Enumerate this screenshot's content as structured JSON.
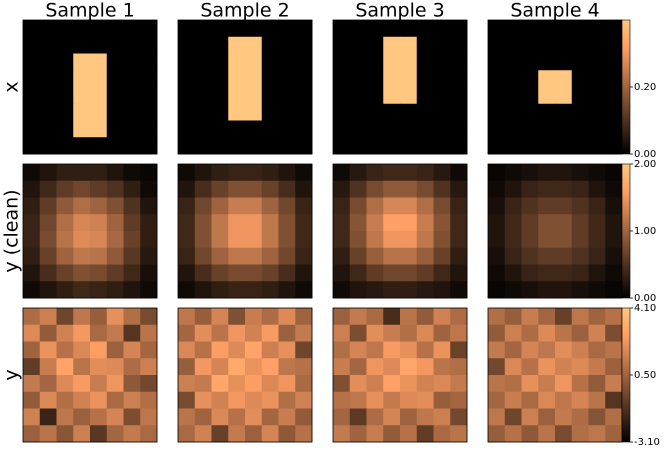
{
  "chart_data": {
    "type": "heatmap",
    "colormap": "copper",
    "columns": [
      "Sample 1",
      "Sample 2",
      "Sample 3",
      "Sample 4"
    ],
    "rows": [
      {
        "label": "x",
        "zlim": [
          0,
          0.4
        ],
        "zticks": [
          {
            "value": 0,
            "label": "0.00"
          },
          {
            "value": 0.2,
            "label": "0.20"
          }
        ],
        "panels": [
          [
            [
              0,
              0,
              0,
              0,
              0,
              0,
              0,
              0
            ],
            [
              0,
              0,
              0,
              0,
              0,
              0,
              0,
              0
            ],
            [
              0,
              0,
              0,
              0.4,
              0.4,
              0,
              0,
              0
            ],
            [
              0,
              0,
              0,
              0.4,
              0.4,
              0,
              0,
              0
            ],
            [
              0,
              0,
              0,
              0.4,
              0.4,
              0,
              0,
              0
            ],
            [
              0,
              0,
              0,
              0.4,
              0.4,
              0,
              0,
              0
            ],
            [
              0,
              0,
              0,
              0.4,
              0.4,
              0,
              0,
              0
            ],
            [
              0,
              0,
              0,
              0,
              0,
              0,
              0,
              0
            ]
          ],
          [
            [
              0,
              0,
              0,
              0,
              0,
              0,
              0,
              0
            ],
            [
              0,
              0,
              0,
              0.4,
              0.4,
              0,
              0,
              0
            ],
            [
              0,
              0,
              0,
              0.4,
              0.4,
              0,
              0,
              0
            ],
            [
              0,
              0,
              0,
              0.4,
              0.4,
              0,
              0,
              0
            ],
            [
              0,
              0,
              0,
              0.4,
              0.4,
              0,
              0,
              0
            ],
            [
              0,
              0,
              0,
              0.4,
              0.4,
              0,
              0,
              0
            ],
            [
              0,
              0,
              0,
              0,
              0,
              0,
              0,
              0
            ],
            [
              0,
              0,
              0,
              0,
              0,
              0,
              0,
              0
            ]
          ],
          [
            [
              0,
              0,
              0,
              0,
              0,
              0,
              0,
              0
            ],
            [
              0,
              0,
              0,
              0.4,
              0.4,
              0,
              0,
              0
            ],
            [
              0,
              0,
              0,
              0.4,
              0.4,
              0,
              0,
              0
            ],
            [
              0,
              0,
              0,
              0.4,
              0.4,
              0,
              0,
              0
            ],
            [
              0,
              0,
              0,
              0.4,
              0.4,
              0,
              0,
              0
            ],
            [
              0,
              0,
              0,
              0,
              0,
              0,
              0,
              0
            ],
            [
              0,
              0,
              0,
              0,
              0,
              0,
              0,
              0
            ],
            [
              0,
              0,
              0,
              0,
              0,
              0,
              0,
              0
            ]
          ],
          [
            [
              0,
              0,
              0,
              0,
              0,
              0,
              0,
              0
            ],
            [
              0,
              0,
              0,
              0,
              0,
              0,
              0,
              0
            ],
            [
              0,
              0,
              0,
              0,
              0,
              0,
              0,
              0
            ],
            [
              0,
              0,
              0,
              0.4,
              0.4,
              0,
              0,
              0
            ],
            [
              0,
              0,
              0,
              0.4,
              0.4,
              0,
              0,
              0
            ],
            [
              0,
              0,
              0,
              0,
              0,
              0,
              0,
              0
            ],
            [
              0,
              0,
              0,
              0,
              0,
              0,
              0,
              0
            ],
            [
              0,
              0,
              0,
              0,
              0,
              0,
              0,
              0
            ]
          ]
        ]
      },
      {
        "label": "y (clean)",
        "zlim": [
          0,
          2
        ],
        "zticks": [
          {
            "value": 0,
            "label": "0.00"
          },
          {
            "value": 1,
            "label": "1.00"
          },
          {
            "value": 2,
            "label": "2.00"
          }
        ],
        "panels": [
          [
            [
              0.1,
              0.2,
              0.3,
              0.3,
              0.3,
              0.2,
              0.1,
              0.05
            ],
            [
              0.2,
              0.4,
              0.6,
              0.7,
              0.6,
              0.5,
              0.3,
              0.1
            ],
            [
              0.3,
              0.6,
              0.9,
              1.1,
              1.0,
              0.8,
              0.5,
              0.2
            ],
            [
              0.35,
              0.7,
              1.1,
              1.35,
              1.3,
              1.0,
              0.6,
              0.3
            ],
            [
              0.35,
              0.75,
              1.15,
              1.4,
              1.35,
              1.05,
              0.65,
              0.3
            ],
            [
              0.3,
              0.65,
              1.0,
              1.2,
              1.15,
              0.9,
              0.55,
              0.25
            ],
            [
              0.2,
              0.45,
              0.65,
              0.8,
              0.75,
              0.6,
              0.4,
              0.15
            ],
            [
              0.1,
              0.2,
              0.3,
              0.4,
              0.35,
              0.3,
              0.2,
              0.1
            ]
          ],
          [
            [
              0.1,
              0.2,
              0.3,
              0.35,
              0.35,
              0.3,
              0.2,
              0.1
            ],
            [
              0.2,
              0.45,
              0.65,
              0.8,
              0.8,
              0.65,
              0.45,
              0.2
            ],
            [
              0.35,
              0.7,
              1.0,
              1.25,
              1.25,
              1.0,
              0.7,
              0.35
            ],
            [
              0.4,
              0.8,
              1.2,
              1.5,
              1.5,
              1.2,
              0.8,
              0.4
            ],
            [
              0.4,
              0.8,
              1.2,
              1.5,
              1.5,
              1.2,
              0.8,
              0.4
            ],
            [
              0.35,
              0.7,
              1.0,
              1.2,
              1.2,
              1.0,
              0.7,
              0.35
            ],
            [
              0.2,
              0.45,
              0.65,
              0.75,
              0.75,
              0.65,
              0.45,
              0.2
            ],
            [
              0.1,
              0.2,
              0.3,
              0.35,
              0.35,
              0.3,
              0.2,
              0.1
            ]
          ],
          [
            [
              0.1,
              0.25,
              0.35,
              0.4,
              0.4,
              0.35,
              0.25,
              0.1
            ],
            [
              0.25,
              0.5,
              0.75,
              0.9,
              0.9,
              0.75,
              0.5,
              0.25
            ],
            [
              0.35,
              0.75,
              1.1,
              1.35,
              1.35,
              1.1,
              0.75,
              0.35
            ],
            [
              0.4,
              0.85,
              1.25,
              1.6,
              1.6,
              1.25,
              0.85,
              0.4
            ],
            [
              0.4,
              0.8,
              1.2,
              1.5,
              1.5,
              1.2,
              0.8,
              0.4
            ],
            [
              0.3,
              0.65,
              0.95,
              1.15,
              1.15,
              0.95,
              0.65,
              0.3
            ],
            [
              0.2,
              0.4,
              0.6,
              0.7,
              0.7,
              0.6,
              0.4,
              0.2
            ],
            [
              0.1,
              0.2,
              0.25,
              0.3,
              0.3,
              0.25,
              0.2,
              0.1
            ]
          ],
          [
            [
              0.05,
              0.1,
              0.15,
              0.2,
              0.2,
              0.15,
              0.1,
              0.05
            ],
            [
              0.1,
              0.2,
              0.35,
              0.4,
              0.4,
              0.35,
              0.2,
              0.1
            ],
            [
              0.15,
              0.35,
              0.5,
              0.6,
              0.6,
              0.5,
              0.35,
              0.15
            ],
            [
              0.2,
              0.4,
              0.6,
              0.8,
              0.8,
              0.6,
              0.4,
              0.2
            ],
            [
              0.2,
              0.4,
              0.6,
              0.8,
              0.8,
              0.6,
              0.4,
              0.2
            ],
            [
              0.15,
              0.35,
              0.5,
              0.6,
              0.6,
              0.5,
              0.35,
              0.15
            ],
            [
              0.1,
              0.2,
              0.35,
              0.4,
              0.4,
              0.35,
              0.2,
              0.1
            ],
            [
              0.05,
              0.1,
              0.15,
              0.2,
              0.2,
              0.15,
              0.1,
              0.05
            ]
          ]
        ]
      },
      {
        "label": "y",
        "zlim": [
          -3.1,
          4.1
        ],
        "zticks": [
          {
            "value": -3.1,
            "label": "-3.10"
          },
          {
            "value": 0.5,
            "label": "0.50"
          },
          {
            "value": 4.1,
            "label": "4.10"
          }
        ],
        "panels": [
          [
            [
              0.8,
              1.5,
              -0.6,
              1.2,
              0.3,
              2.1,
              0.9,
              -0.4
            ],
            [
              1.9,
              0.2,
              1.6,
              2.4,
              0.7,
              1.3,
              -1.2,
              1.1
            ],
            [
              0.5,
              2.2,
              1.0,
              1.8,
              2.6,
              0.4,
              1.7,
              0.6
            ],
            [
              -0.9,
              1.4,
              2.8,
              1.1,
              2.0,
              1.9,
              0.8,
              1.5
            ],
            [
              1.3,
              0.6,
              1.9,
              2.5,
              1.4,
              2.3,
              0.1,
              -0.5
            ],
            [
              0.2,
              1.8,
              0.9,
              1.6,
              2.2,
              0.7,
              1.5,
              0.9
            ],
            [
              1.6,
              -1.8,
              1.2,
              0.4,
              1.0,
              1.7,
              -0.3,
              1.2
            ],
            [
              0.4,
              1.1,
              0.0,
              1.5,
              -1.1,
              0.6,
              1.3,
              0.7
            ]
          ],
          [
            [
              1.2,
              0.3,
              1.7,
              -0.2,
              1.4,
              0.8,
              1.9,
              0.5
            ],
            [
              0.6,
              2.0,
              1.1,
              2.3,
              1.6,
              2.5,
              0.4,
              1.3
            ],
            [
              1.8,
              1.0,
              2.6,
              1.9,
              2.8,
              1.5,
              2.1,
              -0.6
            ],
            [
              0.3,
              2.4,
              1.7,
              3.0,
              2.2,
              2.7,
              1.2,
              1.0
            ],
            [
              1.5,
              1.3,
              2.9,
              2.1,
              2.6,
              1.8,
              2.3,
              0.7
            ],
            [
              -0.4,
              2.1,
              1.6,
              2.4,
              1.9,
              2.2,
              0.9,
              1.6
            ],
            [
              1.1,
              0.5,
              1.8,
              1.0,
              2.0,
              0.6,
              1.4,
              0.2
            ],
            [
              0.7,
              1.6,
              -0.8,
              1.3,
              0.4,
              1.7,
              0.1,
              1.0
            ]
          ],
          [
            [
              0.4,
              1.3,
              0.7,
              -1.5,
              1.1,
              0.2,
              1.6,
              0.8
            ],
            [
              1.5,
              -0.3,
              2.0,
              1.4,
              0.9,
              1.8,
              0.5,
              1.2
            ],
            [
              0.9,
              1.7,
              1.2,
              2.5,
              2.1,
              1.0,
              2.2,
              -0.7
            ],
            [
              1.4,
              0.6,
              2.3,
              1.9,
              2.9,
              2.4,
              1.1,
              0.9
            ],
            [
              -0.2,
              2.0,
              1.5,
              2.7,
              2.2,
              1.6,
              1.8,
              1.3
            ],
            [
              1.0,
              1.2,
              2.1,
              1.3,
              1.9,
              2.0,
              0.3,
              0.6
            ],
            [
              0.6,
              -1.0,
              0.8,
              1.7,
              0.5,
              1.2,
              1.5,
              -0.5
            ],
            [
              1.3,
              0.5,
              1.4,
              0.2,
              1.0,
              -0.9,
              0.7,
              1.1
            ]
          ],
          [
            [
              0.9,
              0.3,
              1.4,
              0.6,
              -0.8,
              1.2,
              0.5,
              1.0
            ],
            [
              0.2,
              1.5,
              0.8,
              1.9,
              1.1,
              0.4,
              1.6,
              -0.3
            ],
            [
              1.3,
              0.6,
              1.7,
              1.2,
              2.0,
              1.5,
              0.7,
              1.1
            ],
            [
              -0.5,
              1.8,
              1.0,
              2.2,
              1.6,
              1.9,
              1.3,
              0.4
            ],
            [
              1.1,
              0.9,
              2.1,
              1.4,
              2.3,
              1.0,
              0.2,
              1.4
            ],
            [
              0.6,
              1.4,
              0.7,
              1.8,
              1.2,
              1.7,
              1.1,
              -1.2
            ],
            [
              1.2,
              -0.6,
              1.5,
              0.4,
              1.3,
              0.8,
              -0.1,
              0.9
            ],
            [
              0.3,
              1.0,
              0.1,
              1.1,
              -0.4,
              0.9,
              1.2,
              0.5
            ]
          ]
        ]
      }
    ]
  }
}
